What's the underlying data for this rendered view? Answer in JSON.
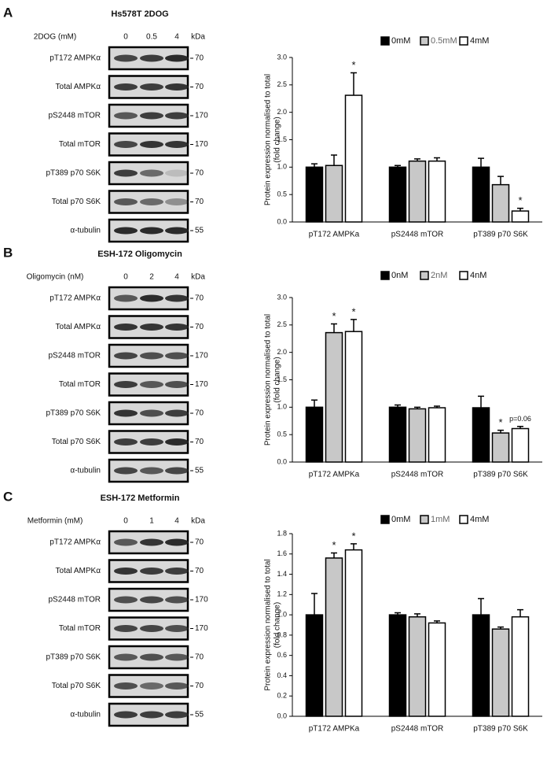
{
  "panels": [
    {
      "letter": "A",
      "title": "Hs578T 2DOG",
      "header": "2DOG (mM)",
      "lanes": [
        "0",
        "0.5",
        "4"
      ],
      "kda_header": "kDa",
      "rows": [
        {
          "label": "pT172 AMPKα",
          "kda": "70"
        },
        {
          "label": "Total AMPKα",
          "kda": "70"
        },
        {
          "label": "pS2448 mTOR",
          "kda": "170"
        },
        {
          "label": "Total mTOR",
          "kda": "170"
        },
        {
          "label": "pT389 p70 S6K",
          "kda": "70"
        },
        {
          "label": "Total p70 S6K",
          "kda": "70"
        },
        {
          "label": "α-tubulin",
          "kda": "55"
        }
      ]
    },
    {
      "letter": "B",
      "title": "ESH-172 Oligomycin",
      "header": "Oligomycin (nM)",
      "lanes": [
        "0",
        "2",
        "4"
      ],
      "kda_header": "kDa",
      "rows": [
        {
          "label": "pT172 AMPKα",
          "kda": "70"
        },
        {
          "label": "Total AMPKα",
          "kda": "70"
        },
        {
          "label": "pS2448 mTOR",
          "kda": "170"
        },
        {
          "label": "Total mTOR",
          "kda": "170"
        },
        {
          "label": "pT389 p70 S6K",
          "kda": "70"
        },
        {
          "label": "Total p70 S6K",
          "kda": "70"
        },
        {
          "label": "α-tubulin",
          "kda": "55"
        }
      ]
    },
    {
      "letter": "C",
      "title": "ESH-172 Metformin",
      "header": "Metformin (mM)",
      "lanes": [
        "0",
        "1",
        "4"
      ],
      "kda_header": "kDa",
      "rows": [
        {
          "label": "pT172 AMPKα",
          "kda": "70"
        },
        {
          "label": "Total AMPKα",
          "kda": "70"
        },
        {
          "label": "pS2448 mTOR",
          "kda": "170"
        },
        {
          "label": "Total mTOR",
          "kda": "170"
        },
        {
          "label": "pT389 p70 S6K",
          "kda": "70"
        },
        {
          "label": "Total p70 S6K",
          "kda": "70"
        },
        {
          "label": "α-tubulin",
          "kda": "55"
        }
      ]
    }
  ],
  "chart_data": [
    {
      "type": "bar",
      "ylabel": [
        "Protein expression normalised to total",
        "(fold change)"
      ],
      "categories": [
        "pT172 AMPKa",
        "pS2448 mTOR",
        "pT389 p70 S6K"
      ],
      "ylim": [
        0,
        3
      ],
      "yticks": [
        {
          "value": 0,
          "label": "0.0"
        },
        {
          "value": 0.5,
          "label": "0.5"
        },
        {
          "value": 1,
          "label": "1.0"
        },
        {
          "value": 1.5,
          "label": "1.5"
        },
        {
          "value": 2,
          "label": "2.0"
        },
        {
          "value": 2.5,
          "label": "2.5"
        },
        {
          "value": 3,
          "label": "3.0"
        }
      ],
      "series": [
        {
          "name": "0mM",
          "color": "#000000",
          "values": [
            1.0,
            1.0,
            1.0
          ],
          "errors": [
            0.06,
            0.03,
            0.16
          ],
          "annotations": [
            null,
            null,
            null
          ]
        },
        {
          "name": "0.5mM",
          "color": "#c8c8c8",
          "values": [
            1.03,
            1.11,
            0.68
          ],
          "errors": [
            0.19,
            0.04,
            0.15
          ],
          "annotations": [
            null,
            null,
            null
          ]
        },
        {
          "name": "4mM",
          "color": "#ffffff",
          "values": [
            2.31,
            1.11,
            0.2
          ],
          "errors": [
            0.41,
            0.06,
            0.05
          ],
          "annotations": [
            "*",
            null,
            "*"
          ]
        }
      ]
    },
    {
      "type": "bar",
      "ylabel": [
        "Protein expression normalised to total",
        "(fold change)"
      ],
      "categories": [
        "pT172 AMPKa",
        "pS2448 mTOR",
        "pT389 p70 S6K"
      ],
      "ylim": [
        0,
        3
      ],
      "yticks": [
        {
          "value": 0,
          "label": "0.0"
        },
        {
          "value": 0.5,
          "label": "0.5"
        },
        {
          "value": 1,
          "label": "1.0"
        },
        {
          "value": 1.5,
          "label": "1.5"
        },
        {
          "value": 2,
          "label": "2.0"
        },
        {
          "value": 2.5,
          "label": "2.5"
        },
        {
          "value": 3,
          "label": "3.0"
        }
      ],
      "series": [
        {
          "name": "0nM",
          "color": "#000000",
          "values": [
            1.0,
            1.0,
            0.99
          ],
          "errors": [
            0.13,
            0.04,
            0.21
          ],
          "annotations": [
            null,
            null,
            null
          ]
        },
        {
          "name": "2nM",
          "color": "#c8c8c8",
          "values": [
            2.36,
            0.97,
            0.53
          ],
          "errors": [
            0.16,
            0.03,
            0.05
          ],
          "annotations": [
            "*",
            null,
            "*"
          ]
        },
        {
          "name": "4nM",
          "color": "#ffffff",
          "values": [
            2.38,
            0.99,
            0.61
          ],
          "errors": [
            0.22,
            0.03,
            0.04
          ],
          "annotations": [
            "*",
            null,
            "p=0.06"
          ]
        }
      ]
    },
    {
      "type": "bar",
      "ylabel": [
        "Protein expression normalised to total",
        "(fold change)"
      ],
      "categories": [
        "pT172 AMPKa",
        "pS2448 mTOR",
        "pT389 p70 S6K"
      ],
      "ylim": [
        0,
        1.8
      ],
      "yticks": [
        {
          "value": 0,
          "label": "0.0"
        },
        {
          "value": 0.2,
          "label": "0.2"
        },
        {
          "value": 0.4,
          "label": "0.4"
        },
        {
          "value": 0.6,
          "label": "0.6"
        },
        {
          "value": 0.8,
          "label": "0.8"
        },
        {
          "value": 1,
          "label": "1.0"
        },
        {
          "value": 1.2,
          "label": "1.2"
        },
        {
          "value": 1.4,
          "label": "1.4"
        },
        {
          "value": 1.6,
          "label": "1.6"
        },
        {
          "value": 1.8,
          "label": "1.8"
        }
      ],
      "series": [
        {
          "name": "0mM",
          "color": "#000000",
          "values": [
            1.0,
            1.0,
            1.0
          ],
          "errors": [
            0.21,
            0.02,
            0.16
          ],
          "annotations": [
            null,
            null,
            null
          ]
        },
        {
          "name": "1mM",
          "color": "#c8c8c8",
          "values": [
            1.56,
            0.98,
            0.86
          ],
          "errors": [
            0.05,
            0.03,
            0.02
          ],
          "annotations": [
            "*",
            null,
            null
          ]
        },
        {
          "name": "4mM",
          "color": "#ffffff",
          "values": [
            1.64,
            0.92,
            0.98
          ],
          "errors": [
            0.06,
            0.02,
            0.07
          ],
          "annotations": [
            "*",
            null,
            null
          ]
        }
      ]
    }
  ]
}
